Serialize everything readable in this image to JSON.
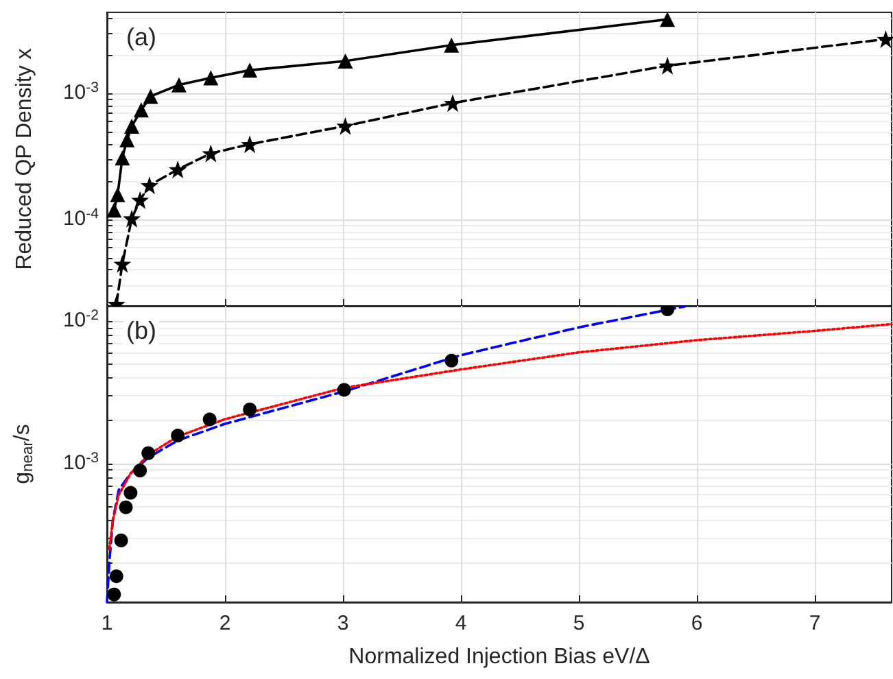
{
  "chart_data": [
    {
      "type": "line",
      "ylabel": "Reduced QP Density x",
      "annotations": [
        "(a)"
      ],
      "log": "y",
      "grid": true,
      "tick_labels": "y",
      "xlim": [
        1,
        7.65
      ],
      "xticks": [
        1,
        2,
        3,
        4,
        5,
        6,
        7
      ],
      "ylim": [
        2.07e-05,
        0.0044
      ],
      "yticks": [
        {
          "value": 3e-05,
          "label": null
        },
        {
          "value": 4e-05,
          "label": null
        },
        {
          "value": 5e-05,
          "label": null
        },
        {
          "value": 6e-05,
          "label": null
        },
        {
          "value": 7e-05,
          "label": null
        },
        {
          "value": 8e-05,
          "label": null
        },
        {
          "value": 9e-05,
          "label": null
        },
        {
          "value": 0.0001,
          "label": "10$^{-4}$"
        },
        {
          "value": 0.0002,
          "label": null
        },
        {
          "value": 0.0003,
          "label": null
        },
        {
          "value": 0.0004,
          "label": null
        },
        {
          "value": 0.0005,
          "label": null
        },
        {
          "value": 0.0006,
          "label": null
        },
        {
          "value": 0.0007,
          "label": null
        },
        {
          "value": 0.0008,
          "label": null
        },
        {
          "value": 0.0009,
          "label": null
        },
        {
          "value": 0.001,
          "label": "10$^{-3}$"
        },
        {
          "value": 0.002,
          "label": null
        },
        {
          "value": 0.003,
          "label": null
        },
        {
          "value": 0.004,
          "label": null
        }
      ],
      "series": [
        {
          "color": "#000000",
          "marker": "triangle",
          "line_style": "solid",
          "x": [
            1.06,
            1.09,
            1.13,
            1.17,
            1.21,
            1.29,
            1.37,
            1.61,
            1.88,
            2.21,
            3.02,
            3.92,
            5.75
          ],
          "values": [
            0.000119,
            0.000158,
            0.000308,
            0.00043,
            0.00055,
            0.00074,
            0.00095,
            0.00117,
            0.00133,
            0.00153,
            0.00181,
            0.00242,
            0.00387
          ]
        },
        {
          "color": "#000000",
          "marker": "star",
          "line_style": "dashed",
          "x": [
            1.08,
            1.13,
            1.21,
            1.28,
            1.36,
            1.6,
            1.88,
            2.21,
            3.02,
            3.93,
            5.75,
            7.6
          ],
          "values": [
            2.14e-05,
            4.46e-05,
            0.000102,
            0.000143,
            0.000187,
            0.00025,
            0.000335,
            0.000396,
            0.000553,
            0.00084,
            0.00166,
            0.0027
          ]
        }
      ]
    },
    {
      "type": "line",
      "xlabel": "Normalized Injection Bias eV/Δ",
      "ylabel": "g$_{near}$/s",
      "annotations": [
        "(b)"
      ],
      "log": "y",
      "grid": true,
      "xlim": [
        1,
        7.65
      ],
      "xticks": [
        1,
        2,
        3,
        4,
        5,
        6,
        7
      ],
      "ylim": [
        0.000105,
        0.0129
      ],
      "yticks": [
        {
          "value": 0.0002,
          "label": null
        },
        {
          "value": 0.0003,
          "label": null
        },
        {
          "value": 0.0004,
          "label": null
        },
        {
          "value": 0.0005,
          "label": null
        },
        {
          "value": 0.0006,
          "label": null
        },
        {
          "value": 0.0007,
          "label": null
        },
        {
          "value": 0.0008,
          "label": null
        },
        {
          "value": 0.0009,
          "label": null
        },
        {
          "value": 0.001,
          "label": "10$^{-3}$"
        },
        {
          "value": 0.002,
          "label": null
        },
        {
          "value": 0.003,
          "label": null
        },
        {
          "value": 0.004,
          "label": null
        },
        {
          "value": 0.005,
          "label": null
        },
        {
          "value": 0.006,
          "label": null
        },
        {
          "value": 0.007,
          "label": null
        },
        {
          "value": 0.008,
          "label": null
        },
        {
          "value": 0.009,
          "label": null
        },
        {
          "value": 0.01,
          "label": "10$^{-2}$"
        }
      ],
      "series": [
        {
          "type": "scatter",
          "color": "#000000",
          "marker": "circle",
          "x": [
            1.06,
            1.08,
            1.12,
            1.16,
            1.2,
            1.28,
            1.35,
            1.6,
            1.87,
            2.21,
            3.01,
            3.92,
            5.75
          ],
          "values": [
            0.000119,
            0.00016,
            0.000286,
            0.00049,
            0.00062,
            0.00089,
            0.00118,
            0.00157,
            0.00204,
            0.0024,
            0.0033,
            0.0053,
            0.0122
          ]
        },
        {
          "color": "#0000ff",
          "marker": "none",
          "line_style": "dashed",
          "x": [
            1.0,
            1.02,
            1.05,
            1.1,
            1.2,
            1.35,
            1.6,
            2,
            3,
            4,
            5,
            5.9
          ],
          "values": [
            0.000105,
            0.0002,
            0.0004,
            0.00065,
            0.00085,
            0.0011,
            0.00145,
            0.0019,
            0.0032,
            0.0058,
            0.0091,
            0.0128
          ]
        },
        {
          "color": "#ff0000",
          "marker": "none",
          "line_style": "dotted",
          "x": [
            1.02,
            1.05,
            1.1,
            1.2,
            1.35,
            1.6,
            2,
            3,
            4,
            5,
            6,
            7,
            7.65
          ],
          "values": [
            0.00025,
            0.0004,
            0.0006,
            0.00085,
            0.00115,
            0.00155,
            0.00205,
            0.0034,
            0.0046,
            0.00607,
            0.0074,
            0.0086,
            0.0096
          ]
        }
      ]
    }
  ]
}
